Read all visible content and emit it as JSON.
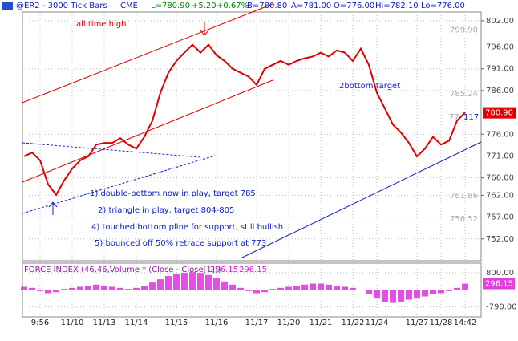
{
  "header": {
    "items": [
      "@ER2 - 3000 Tick Bars",
      "CME",
      "L=780.90",
      "+5.20",
      "+0.67%",
      "B=780.80",
      "A=781.00",
      "O=776.00",
      "Hi=782.10",
      "Lo=776.00"
    ]
  },
  "chart_data": [
    {
      "type": "line",
      "color": "#e00000",
      "categories": [
        null,
        null,
        "9:56",
        null,
        null,
        null,
        "11/10",
        null,
        null,
        null,
        "11/13",
        null,
        null,
        null,
        "11/14",
        null,
        null,
        null,
        null,
        "11/15",
        null,
        null,
        null,
        null,
        "11/16",
        null,
        null,
        null,
        null,
        "11/17",
        null,
        null,
        null,
        "11/20",
        null,
        null,
        null,
        "11/21",
        null,
        null,
        null,
        "11/22",
        null,
        null,
        "11/24",
        null,
        null,
        null,
        null,
        "11/27",
        null,
        null,
        "11/28",
        null,
        null,
        "14:42"
      ],
      "values": [
        770.9,
        771.8,
        770,
        764.5,
        762.1,
        765.4,
        768.1,
        770,
        770.9,
        773.6,
        774,
        774,
        775.1,
        773.6,
        772.7,
        775.4,
        779.1,
        785.5,
        790.1,
        792.8,
        794.7,
        796.5,
        794.7,
        796.5,
        794.1,
        792.8,
        791,
        790.1,
        789.2,
        787.3,
        791,
        791.9,
        792.8,
        791.9,
        792.8,
        793.4,
        793.8,
        794.7,
        793.8,
        795.2,
        794.7,
        792.8,
        795.6,
        791.9,
        785.5,
        781.9,
        778.2,
        776.4,
        774,
        770.9,
        772.7,
        775.4,
        773.6,
        774.5,
        779.1,
        781
      ],
      "ylim": [
        747,
        804
      ],
      "yticks": [
        {
          "value": 802,
          "label": "802.00"
        },
        {
          "value": 796,
          "label": "796.00"
        },
        {
          "value": 791,
          "label": "791.00"
        },
        {
          "value": 786,
          "label": "786.00"
        },
        {
          "value": 776,
          "label": "776.00"
        },
        {
          "value": 771,
          "label": "771.00"
        },
        {
          "value": 766,
          "label": "766.00"
        },
        {
          "value": 762,
          "label": "762.00"
        },
        {
          "value": 757,
          "label": "757.00"
        },
        {
          "value": 752,
          "label": "752.00"
        }
      ],
      "grid": true,
      "levels": [
        {
          "value": 799.9,
          "label": "799.90"
        },
        {
          "value": 785.24,
          "label": "785.24"
        },
        {
          "value": 761.86,
          "label": "761.86"
        },
        {
          "value": 756.52,
          "label": "756.52"
        }
      ],
      "last": {
        "value": 780.9,
        "label": "780.90"
      },
      "annotations": [
        "all time high",
        "2bottom target",
        "77",
        "117",
        "1) double-bottom now in play, target 785",
        "2) triangle in play, target 804-805",
        "4) touched bottom pline for support, still bullish",
        "5) bounced off 50% retrace support at 773"
      ]
    },
    {
      "type": "bar",
      "color": "#e020e0",
      "title": "FORCE INDEX (46,46,Volume * (Close - Close[1]))",
      "readouts": [
        296.15,
        296.15
      ],
      "values": [
        150,
        100,
        -50,
        -150,
        -100,
        50,
        100,
        150,
        200,
        250,
        200,
        150,
        100,
        50,
        100,
        200,
        350,
        500,
        650,
        750,
        800,
        850,
        800,
        700,
        550,
        400,
        250,
        100,
        -50,
        -150,
        -100,
        50,
        100,
        150,
        200,
        250,
        300,
        300,
        250,
        200,
        150,
        100,
        0,
        -200,
        -400,
        -550,
        -600,
        -550,
        -450,
        -400,
        -300,
        -200,
        -150,
        -50,
        100,
        296.15
      ],
      "ylim": [
        -1250,
        1250
      ],
      "yticks": [
        {
          "value": 800,
          "label": "800.00"
        },
        {
          "value": -790,
          "label": "-790.00"
        }
      ],
      "last": 296.15
    }
  ]
}
